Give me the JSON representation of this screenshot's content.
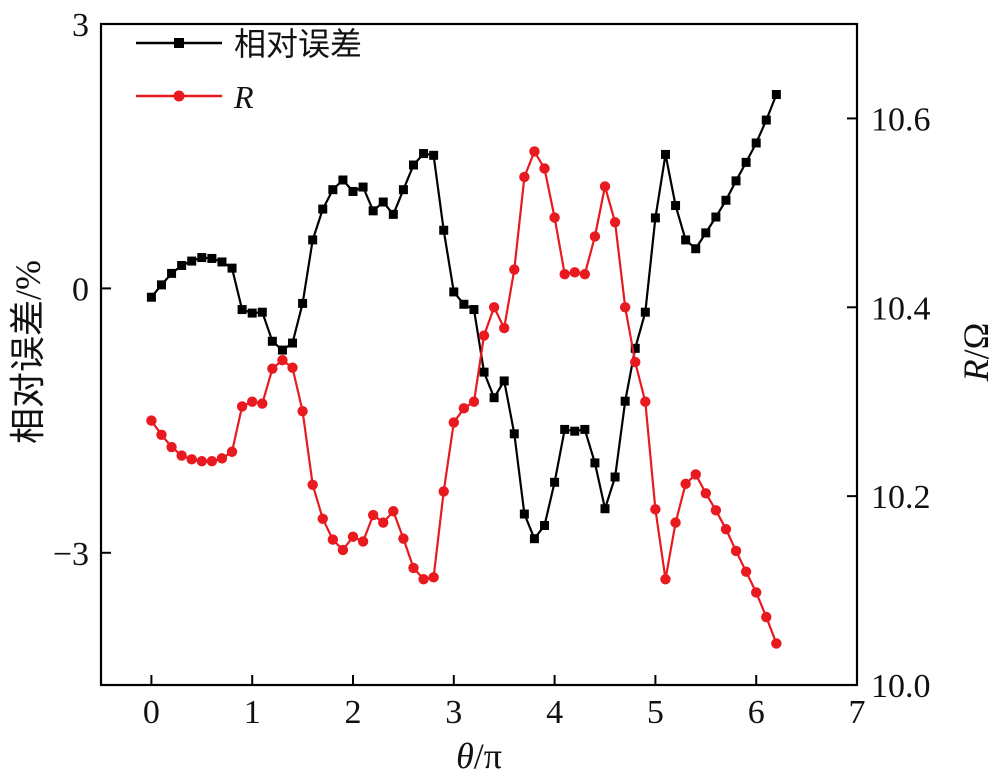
{
  "chart_data": {
    "type": "line",
    "x_axis": {
      "label_var": "θ",
      "label_unit": "/π",
      "range": [
        -0.5,
        7
      ],
      "ticks": [
        0,
        1,
        2,
        3,
        4,
        5,
        6,
        7
      ],
      "tick_labels": [
        "0",
        "1",
        "2",
        "3",
        "4",
        "5",
        "6",
        "7"
      ]
    },
    "y_left": {
      "label": "相对误差/%",
      "range": [
        -4.5,
        3
      ],
      "ticks": [
        -3,
        0,
        3
      ],
      "tick_labels": [
        "−3",
        "0",
        "3"
      ]
    },
    "y_right": {
      "label_var": "R",
      "label_unit": "/Ω",
      "range": [
        10.0,
        10.7
      ],
      "ticks": [
        10.0,
        10.2,
        10.4,
        10.6
      ],
      "tick_labels": [
        "10.0",
        "10.2",
        "10.4",
        "10.6"
      ]
    },
    "legend": {
      "position": "top-left",
      "entries": [
        "相对误差",
        "R"
      ]
    },
    "x": [
      0,
      0.1,
      0.2,
      0.3,
      0.4,
      0.5,
      0.6,
      0.7,
      0.8,
      0.9,
      1.0,
      1.1,
      1.2,
      1.3,
      1.4,
      1.5,
      1.6,
      1.7,
      1.8,
      1.9,
      2.0,
      2.1,
      2.2,
      2.3,
      2.4,
      2.5,
      2.6,
      2.7,
      2.8,
      2.9,
      3.0,
      3.1,
      3.2,
      3.3,
      3.4,
      3.5,
      3.6,
      3.7,
      3.8,
      3.9,
      4.0,
      4.1,
      4.2,
      4.3,
      4.4,
      4.5,
      4.6,
      4.7,
      4.8,
      4.9,
      5.0,
      5.1,
      5.2,
      5.3,
      5.4,
      5.5,
      5.6,
      5.7,
      5.8,
      5.9,
      6.0,
      6.1,
      6.2
    ],
    "series": [
      {
        "name": "相对误差",
        "axis": "left",
        "color": "#000000",
        "marker": "square",
        "values": [
          -0.1,
          0.04,
          0.17,
          0.26,
          0.31,
          0.35,
          0.34,
          0.3,
          0.23,
          -0.24,
          -0.28,
          -0.27,
          -0.6,
          -0.7,
          -0.62,
          -0.17,
          0.55,
          0.9,
          1.12,
          1.23,
          1.1,
          1.15,
          0.88,
          0.98,
          0.84,
          1.12,
          1.4,
          1.53,
          1.51,
          0.66,
          -0.04,
          -0.18,
          -0.24,
          -0.95,
          -1.24,
          -1.05,
          -1.65,
          -2.56,
          -2.84,
          -2.69,
          -2.2,
          -1.6,
          -1.62,
          -1.6,
          -1.98,
          -2.5,
          -2.14,
          -1.28,
          -0.68,
          -0.27,
          0.8,
          1.52,
          0.94,
          0.55,
          0.45,
          0.63,
          0.81,
          1.0,
          1.22,
          1.43,
          1.65,
          1.91,
          2.2
        ]
      },
      {
        "name": "R",
        "axis": "right",
        "color": "#e8191f",
        "marker": "circle",
        "values": [
          10.28,
          10.265,
          10.252,
          10.243,
          10.239,
          10.237,
          10.237,
          10.24,
          10.247,
          10.295,
          10.3,
          10.298,
          10.335,
          10.344,
          10.336,
          10.29,
          10.212,
          10.176,
          10.154,
          10.143,
          10.157,
          10.152,
          10.18,
          10.172,
          10.184,
          10.155,
          10.124,
          10.112,
          10.114,
          10.205,
          10.278,
          10.293,
          10.3,
          10.37,
          10.4,
          10.378,
          10.44,
          10.538,
          10.565,
          10.547,
          10.495,
          10.435,
          10.437,
          10.435,
          10.475,
          10.528,
          10.49,
          10.4,
          10.342,
          10.3,
          10.186,
          10.112,
          10.172,
          10.213,
          10.223,
          10.203,
          10.185,
          10.165,
          10.142,
          10.12,
          10.098,
          10.072,
          10.044
        ]
      }
    ]
  }
}
